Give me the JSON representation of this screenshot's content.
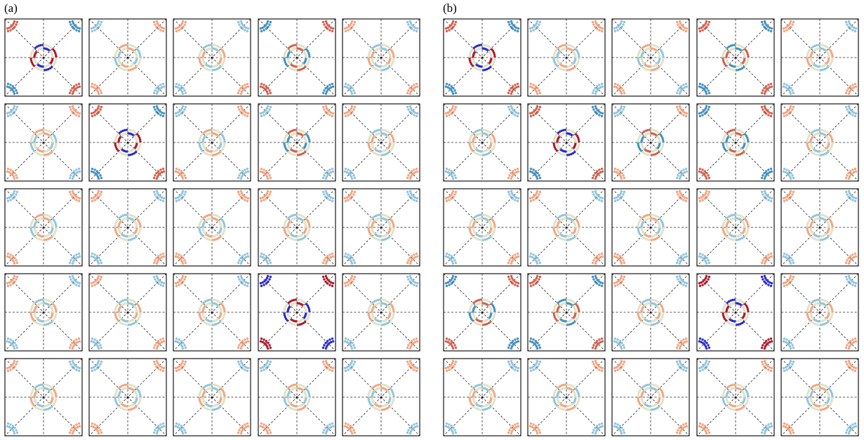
{
  "panels": [
    {
      "label": "(a)"
    },
    {
      "label": "(b)"
    }
  ],
  "colors": {
    "frame": "#000000",
    "guide": "#222222",
    "strong_red": "#b2182b",
    "red": "#d6604d",
    "light_red": "#f4a582",
    "neutral": "#dfe3c8",
    "light_blue": "#92c5de",
    "blue": "#4393c3",
    "strong_blue": "#2b2bd0"
  },
  "chart_data": [
    {
      "type": "heatmap",
      "grid": {
        "rows": 5,
        "cols": 5
      },
      "subplot_intensity": [
        [
          0.8,
          0.35,
          0.25,
          0.5,
          0.2
        ],
        [
          0.3,
          0.8,
          0.4,
          0.45,
          0.25
        ],
        [
          0.35,
          0.4,
          0.3,
          0.2,
          0.2
        ],
        [
          0.4,
          0.3,
          0.25,
          0.95,
          0.3
        ],
        [
          0.25,
          0.3,
          0.25,
          0.3,
          0.3
        ]
      ],
      "subplot_sign": [
        [
          1,
          -1,
          1,
          -1,
          1
        ],
        [
          -1,
          1,
          -1,
          -1,
          1
        ],
        [
          -1,
          1,
          -1,
          1,
          1
        ],
        [
          1,
          1,
          1,
          -1,
          1
        ],
        [
          1,
          -1,
          1,
          -1,
          -1
        ]
      ]
    },
    {
      "type": "heatmap",
      "grid": {
        "rows": 5,
        "cols": 5
      },
      "subplot_intensity": [
        [
          0.85,
          0.35,
          0.35,
          0.55,
          0.25
        ],
        [
          0.35,
          0.8,
          0.45,
          0.55,
          0.25
        ],
        [
          0.35,
          0.4,
          0.35,
          0.2,
          0.2
        ],
        [
          0.55,
          0.55,
          0.25,
          0.95,
          0.3
        ],
        [
          0.3,
          0.3,
          0.25,
          0.3,
          0.3
        ]
      ],
      "subplot_sign": [
        [
          1,
          -1,
          -1,
          1,
          1
        ],
        [
          1,
          1,
          -1,
          -1,
          1
        ],
        [
          1,
          1,
          -1,
          1,
          1
        ],
        [
          -1,
          1,
          1,
          1,
          1
        ],
        [
          1,
          -1,
          1,
          -1,
          -1
        ]
      ]
    }
  ]
}
